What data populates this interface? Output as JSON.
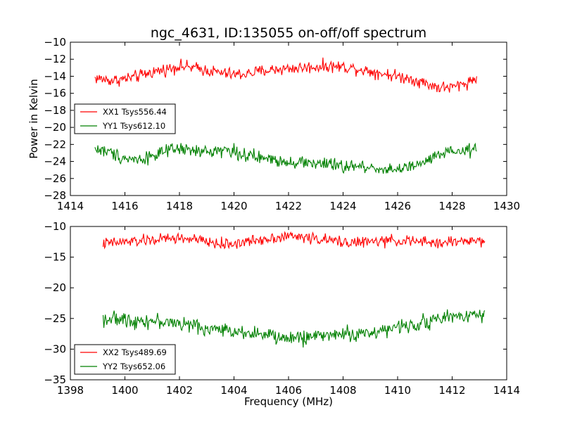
{
  "figure": {
    "title": "ngc_4631, ID:135055 on-off/off spectrum"
  },
  "chart_data": [
    {
      "type": "line",
      "title": "ngc_4631, ID:135055 on-off/off spectrum",
      "xlabel": "",
      "ylabel": "Power in Kelvin",
      "xlim": [
        1414,
        1430
      ],
      "ylim": [
        -28,
        -10
      ],
      "xticks": [
        "1414",
        "1416",
        "1418",
        "1420",
        "1422",
        "1424",
        "1426",
        "1428",
        "1430"
      ],
      "yticks": [
        "−28",
        "−26",
        "−24",
        "−22",
        "−20",
        "−18",
        "−16",
        "−14",
        "−12",
        "−10"
      ],
      "legend_position": "center-left",
      "x_range": [
        1414.9,
        1428.9
      ],
      "series": [
        {
          "name": "XX1 Tsys556.44",
          "color": "#ff0000",
          "x": [
            1414.9,
            1415.5,
            1416.0,
            1416.5,
            1417.0,
            1417.5,
            1418.0,
            1418.5,
            1419.0,
            1419.5,
            1420.0,
            1420.5,
            1421.0,
            1421.5,
            1422.0,
            1422.5,
            1423.0,
            1423.5,
            1424.0,
            1424.5,
            1425.0,
            1425.5,
            1426.0,
            1426.5,
            1427.0,
            1427.5,
            1428.0,
            1428.5,
            1428.9
          ],
          "values": [
            -14.2,
            -14.5,
            -14.3,
            -14.0,
            -13.5,
            -13.2,
            -12.8,
            -13.0,
            -13.3,
            -13.6,
            -13.8,
            -13.7,
            -13.4,
            -13.2,
            -13.1,
            -13.0,
            -12.9,
            -12.8,
            -12.9,
            -13.1,
            -13.4,
            -13.7,
            -14.0,
            -14.3,
            -14.8,
            -15.3,
            -15.3,
            -14.8,
            -14.2
          ],
          "noise": 0.55
        },
        {
          "name": "YY1 Tsys612.10",
          "color": "#008000",
          "x": [
            1414.9,
            1415.5,
            1416.0,
            1416.5,
            1417.0,
            1417.5,
            1418.0,
            1418.5,
            1419.0,
            1419.5,
            1420.0,
            1420.5,
            1421.0,
            1421.5,
            1422.0,
            1422.5,
            1423.0,
            1423.5,
            1424.0,
            1424.5,
            1425.0,
            1425.5,
            1426.0,
            1426.5,
            1427.0,
            1427.5,
            1428.0,
            1428.5,
            1428.9
          ],
          "values": [
            -22.5,
            -23.0,
            -23.6,
            -23.8,
            -23.3,
            -22.9,
            -22.5,
            -22.8,
            -22.9,
            -22.6,
            -22.8,
            -23.4,
            -23.6,
            -23.8,
            -24.0,
            -24.1,
            -24.2,
            -24.4,
            -24.6,
            -24.6,
            -24.7,
            -24.9,
            -24.9,
            -24.7,
            -24.1,
            -23.3,
            -22.9,
            -22.8,
            -22.6
          ],
          "noise": 0.6
        }
      ]
    },
    {
      "type": "line",
      "title": "",
      "xlabel": "Frequency (MHz)",
      "ylabel": "",
      "xlim": [
        1398,
        1414
      ],
      "ylim": [
        -35,
        -10
      ],
      "xticks": [
        "1398",
        "1400",
        "1402",
        "1404",
        "1406",
        "1408",
        "1410",
        "1412",
        "1414"
      ],
      "yticks": [
        "−35",
        "−30",
        "−25",
        "−20",
        "−15",
        "−10"
      ],
      "legend_position": "lower-left",
      "x_range": [
        1399.2,
        1413.2
      ],
      "series": [
        {
          "name": "XX2 Tsys489.69",
          "color": "#ff0000",
          "x": [
            1399.2,
            1399.8,
            1400.5,
            1401.0,
            1401.5,
            1402.0,
            1402.5,
            1403.0,
            1403.5,
            1404.0,
            1404.5,
            1405.0,
            1405.5,
            1406.0,
            1406.5,
            1407.0,
            1407.5,
            1408.0,
            1408.5,
            1409.0,
            1409.5,
            1410.0,
            1410.5,
            1411.0,
            1411.5,
            1412.0,
            1412.5,
            1413.2
          ],
          "values": [
            -12.8,
            -12.6,
            -12.4,
            -12.2,
            -12.0,
            -11.9,
            -12.1,
            -12.5,
            -12.9,
            -12.8,
            -12.5,
            -12.1,
            -11.8,
            -11.6,
            -11.7,
            -12.0,
            -12.3,
            -12.5,
            -12.6,
            -12.5,
            -12.4,
            -12.3,
            -12.4,
            -12.6,
            -12.7,
            -12.5,
            -12.3,
            -12.4
          ],
          "noise": 0.7
        },
        {
          "name": "YY2 Tsys652.06",
          "color": "#008000",
          "x": [
            1399.2,
            1399.8,
            1400.5,
            1401.0,
            1401.5,
            1402.0,
            1402.5,
            1403.0,
            1403.5,
            1404.0,
            1404.5,
            1405.0,
            1405.5,
            1406.0,
            1406.5,
            1407.0,
            1407.5,
            1408.0,
            1408.5,
            1409.0,
            1409.5,
            1410.0,
            1410.5,
            1411.0,
            1411.5,
            1412.0,
            1412.5,
            1413.2
          ],
          "values": [
            -25.0,
            -25.2,
            -25.3,
            -25.4,
            -25.6,
            -25.8,
            -26.2,
            -26.6,
            -26.9,
            -27.0,
            -27.2,
            -27.6,
            -28.0,
            -28.3,
            -28.1,
            -27.8,
            -27.6,
            -27.5,
            -27.6,
            -27.3,
            -26.9,
            -26.5,
            -26.0,
            -25.6,
            -25.1,
            -24.7,
            -24.4,
            -24.2
          ],
          "noise": 0.9
        }
      ]
    }
  ]
}
